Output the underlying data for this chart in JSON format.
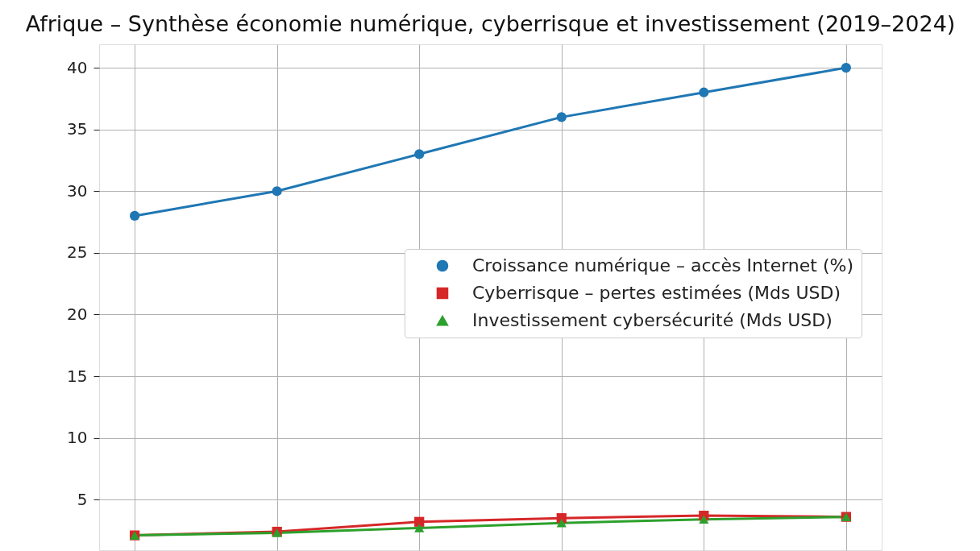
{
  "chart_data": {
    "type": "line",
    "title": "Afrique – Synthèse économie numérique, cyberrisque et investissement (2019–2024)",
    "categories": [
      null,
      null,
      null,
      null,
      null,
      null
    ],
    "series": [
      {
        "name": "Croissance numérique – accès Internet (%)",
        "color": "#1f77b4",
        "marker": "circle",
        "values": [
          28,
          30,
          33,
          36,
          38,
          40
        ]
      },
      {
        "name": "Cyberrisque – pertes estimées (Mds USD)",
        "color": "#d62728",
        "marker": "square",
        "values": [
          2.1,
          2.4,
          3.2,
          3.5,
          3.7,
          3.6
        ]
      },
      {
        "name": "Investissement cybersécurité (Mds USD)",
        "color": "#2ca02c",
        "marker": "triangle",
        "values": [
          2.1,
          2.3,
          2.7,
          3.1,
          3.4,
          3.6
        ]
      }
    ],
    "ylim": [
      0.9,
      41.9
    ],
    "yticks": [
      5,
      10,
      15,
      20,
      25,
      30,
      35,
      40
    ],
    "grid": true,
    "legend": "right",
    "tick_labels": "y",
    "line_style": "solid"
  }
}
